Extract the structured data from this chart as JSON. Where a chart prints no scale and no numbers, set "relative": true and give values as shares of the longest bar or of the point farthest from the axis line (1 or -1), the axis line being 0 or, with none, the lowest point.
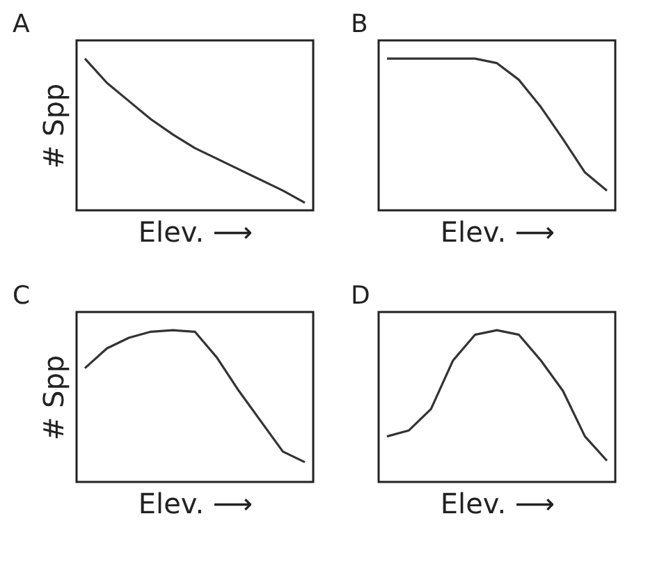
{
  "chart_data": [
    {
      "type": "line",
      "title": "A",
      "ylabel": "# Spp",
      "xlabel": "Elev. ⟶",
      "relative": true,
      "tick_labels": false,
      "grid": false,
      "categories": [
        null,
        null,
        null,
        null,
        null,
        null,
        null,
        null,
        null,
        null,
        null
      ],
      "series": [
        {
          "color": "#333333",
          "values": [
            1,
            0.84,
            0.72,
            0.6,
            0.5,
            0.41,
            0.34,
            0.27,
            0.2,
            0.13,
            0.05
          ]
        }
      ]
    },
    {
      "type": "line",
      "title": "B",
      "xlabel": "Elev. ⟶",
      "relative": true,
      "tick_labels": false,
      "grid": false,
      "categories": [
        null,
        null,
        null,
        null,
        null,
        null,
        null,
        null,
        null,
        null,
        null
      ],
      "series": [
        {
          "color": "#333333",
          "values": [
            1,
            1,
            1,
            1,
            1,
            0.97,
            0.86,
            0.68,
            0.47,
            0.25,
            0.13
          ]
        }
      ]
    },
    {
      "type": "line",
      "title": "C",
      "ylabel": "# Spp",
      "xlabel": "Elev. ⟶",
      "relative": true,
      "tick_labels": false,
      "grid": false,
      "categories": [
        null,
        null,
        null,
        null,
        null,
        null,
        null,
        null,
        null,
        null,
        null
      ],
      "series": [
        {
          "color": "#333333",
          "values": [
            0.75,
            0.88,
            0.95,
            0.99,
            1,
            0.99,
            0.82,
            0.6,
            0.4,
            0.2,
            0.13
          ]
        }
      ]
    },
    {
      "type": "line",
      "title": "D",
      "xlabel": "Elev. ⟶",
      "relative": true,
      "tick_labels": false,
      "grid": false,
      "categories": [
        null,
        null,
        null,
        null,
        null,
        null,
        null,
        null,
        null,
        null,
        null
      ],
      "series": [
        {
          "color": "#333333",
          "values": [
            0.3,
            0.34,
            0.48,
            0.8,
            0.97,
            1,
            0.97,
            0.8,
            0.6,
            0.3,
            0.14
          ]
        }
      ]
    }
  ]
}
